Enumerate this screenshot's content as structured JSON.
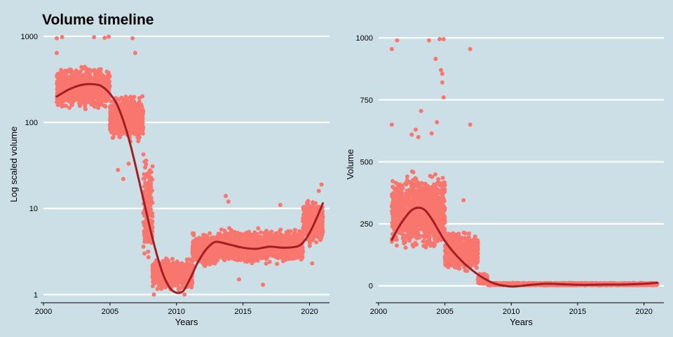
{
  "chart_data": [
    {
      "type": "scatter",
      "title": "Volume timeline",
      "xlabel": "Years",
      "ylabel": "Log scaled volume",
      "yscale": "log",
      "xlim": [
        2000,
        2021.5
      ],
      "ylim": [
        0.85,
        1250
      ],
      "xticks": [
        2000,
        2005,
        2010,
        2015,
        2020
      ],
      "xtick_labels": [
        "2000",
        "2005",
        "2010",
        "2015",
        "2020"
      ],
      "yticks": [
        1,
        10,
        100,
        1000
      ],
      "ytick_labels": [
        "1",
        "10",
        "100",
        "1000"
      ],
      "grid": "horizontal major",
      "legend": "none",
      "colors": {
        "points": "#f8766d",
        "trend": "#a11e25",
        "background": "#cddfe6",
        "grid": "#ffffff"
      },
      "series": [
        {
          "kind": "points",
          "segments": [
            {
              "x": [
                2001.0,
                2005.0
              ],
              "y_low": 130,
              "y_high": 480
            },
            {
              "x": [
                2005.0,
                2007.5
              ],
              "y_low": 55,
              "y_high": 230
            },
            {
              "x": [
                2007.5,
                2008.2
              ],
              "y_low": 1.8,
              "y_high": 60
            },
            {
              "x": [
                2008.2,
                2011.2
              ],
              "y_low": 1.05,
              "y_high": 2.8
            },
            {
              "x": [
                2011.2,
                2013.0
              ],
              "y_low": 2.0,
              "y_high": 5.5
            },
            {
              "x": [
                2013.0,
                2019.5
              ],
              "y_low": 2.2,
              "y_high": 6.0
            },
            {
              "x": [
                2019.5,
                2021.0
              ],
              "y_low": 3.5,
              "y_high": 14
            }
          ],
          "outliers": [
            [
              2001.0,
              950
            ],
            [
              2001.4,
              980
            ],
            [
              2003.8,
              975
            ],
            [
              2004.6,
              960
            ],
            [
              2004.9,
              990
            ],
            [
              2006.7,
              950
            ],
            [
              2006.9,
              640
            ],
            [
              2001.0,
              640
            ],
            [
              2005.6,
              28
            ],
            [
              2006.0,
              22
            ],
            [
              2006.4,
              33
            ],
            [
              2008.3,
              1.0
            ],
            [
              2010.6,
              1.0
            ],
            [
              2013.7,
              14
            ],
            [
              2013.9,
              12
            ],
            [
              2014.7,
              1.5
            ],
            [
              2016.5,
              1.3
            ],
            [
              2017.8,
              11
            ],
            [
              2020.2,
              2.3
            ],
            [
              2020.9,
              19
            ],
            [
              2020.7,
              16
            ]
          ]
        },
        {
          "kind": "smooth",
          "x": [
            2001.0,
            2002.0,
            2003.0,
            2004.0,
            2004.5,
            2005.0,
            2005.5,
            2006.0,
            2006.5,
            2007.0,
            2007.5,
            2008.0,
            2008.5,
            2009.0,
            2009.5,
            2010.0,
            2010.5,
            2011.0,
            2011.5,
            2012.0,
            2012.5,
            2013.0,
            2014.0,
            2015.0,
            2016.0,
            2017.0,
            2018.0,
            2019.0,
            2019.5,
            2020.0,
            2020.5,
            2021.0
          ],
          "y": [
            200,
            245,
            275,
            275,
            255,
            215,
            165,
            105,
            58,
            28,
            13,
            6.0,
            3.0,
            1.7,
            1.2,
            1.05,
            1.1,
            1.5,
            2.2,
            3.0,
            3.7,
            4.1,
            3.8,
            3.5,
            3.4,
            3.6,
            3.5,
            3.6,
            4.0,
            5.2,
            7.5,
            11.5
          ]
        }
      ]
    },
    {
      "type": "scatter",
      "xlabel": "Years",
      "ylabel": "Volume",
      "yscale": "linear",
      "xlim": [
        2000,
        2021.5
      ],
      "ylim": [
        -60,
        1040
      ],
      "xticks": [
        2000,
        2005,
        2010,
        2015,
        2020
      ],
      "xtick_labels": [
        "2000",
        "2005",
        "2010",
        "2015",
        "2020"
      ],
      "yticks": [
        0,
        250,
        500,
        750,
        1000
      ],
      "ytick_labels": [
        "0",
        "250",
        "500",
        "750",
        "1000"
      ],
      "grid": "horizontal major",
      "legend": "none",
      "colors": {
        "points": "#f8766d",
        "trend": "#a11e25",
        "background": "#cddfe6",
        "grid": "#ffffff"
      },
      "series": [
        {
          "kind": "points",
          "segments": [
            {
              "x": [
                2001.0,
                2005.0
              ],
              "y_low": 120,
              "y_high": 480
            },
            {
              "x": [
                2005.0,
                2007.5
              ],
              "y_low": 50,
              "y_high": 230
            },
            {
              "x": [
                2007.5,
                2008.2
              ],
              "y_low": 2,
              "y_high": 55
            },
            {
              "x": [
                2008.2,
                2021.0
              ],
              "y_low": 1,
              "y_high": 12
            }
          ],
          "outliers": [
            [
              2001.0,
              955
            ],
            [
              2001.4,
              990
            ],
            [
              2003.8,
              990
            ],
            [
              2004.6,
              995
            ],
            [
              2004.9,
              995
            ],
            [
              2004.3,
              915
            ],
            [
              2004.7,
              870
            ],
            [
              2004.8,
              855
            ],
            [
              2004.8,
              820
            ],
            [
              2004.9,
              760
            ],
            [
              2006.9,
              955
            ],
            [
              2006.9,
              650
            ],
            [
              2003.2,
              705
            ],
            [
              2001.0,
              650
            ],
            [
              2004.4,
              660
            ],
            [
              2002.8,
              630
            ],
            [
              2004.0,
              615
            ],
            [
              2002.5,
              610
            ],
            [
              2003.0,
              600
            ],
            [
              2006.4,
              345
            ]
          ]
        },
        {
          "kind": "smooth",
          "x": [
            2001.0,
            2001.5,
            2002.0,
            2002.5,
            2003.0,
            2003.5,
            2004.0,
            2004.5,
            2005.0,
            2005.5,
            2006.0,
            2006.5,
            2007.0,
            2007.5,
            2008.0,
            2008.5,
            2009.0,
            2009.5,
            2010.0,
            2010.5,
            2011.0,
            2011.5,
            2012.0,
            2012.5,
            2013.0,
            2014.0,
            2015.0,
            2016.0,
            2017.0,
            2018.0,
            2019.0,
            2020.0,
            2020.5,
            2021.0
          ],
          "y": [
            185,
            235,
            275,
            305,
            315,
            305,
            270,
            225,
            180,
            145,
            115,
            88,
            65,
            45,
            28,
            14,
            5,
            0,
            -3,
            -2,
            1,
            4,
            6,
            8,
            8,
            6,
            4,
            4,
            5,
            5,
            6,
            8,
            10,
            12
          ]
        }
      ]
    }
  ]
}
